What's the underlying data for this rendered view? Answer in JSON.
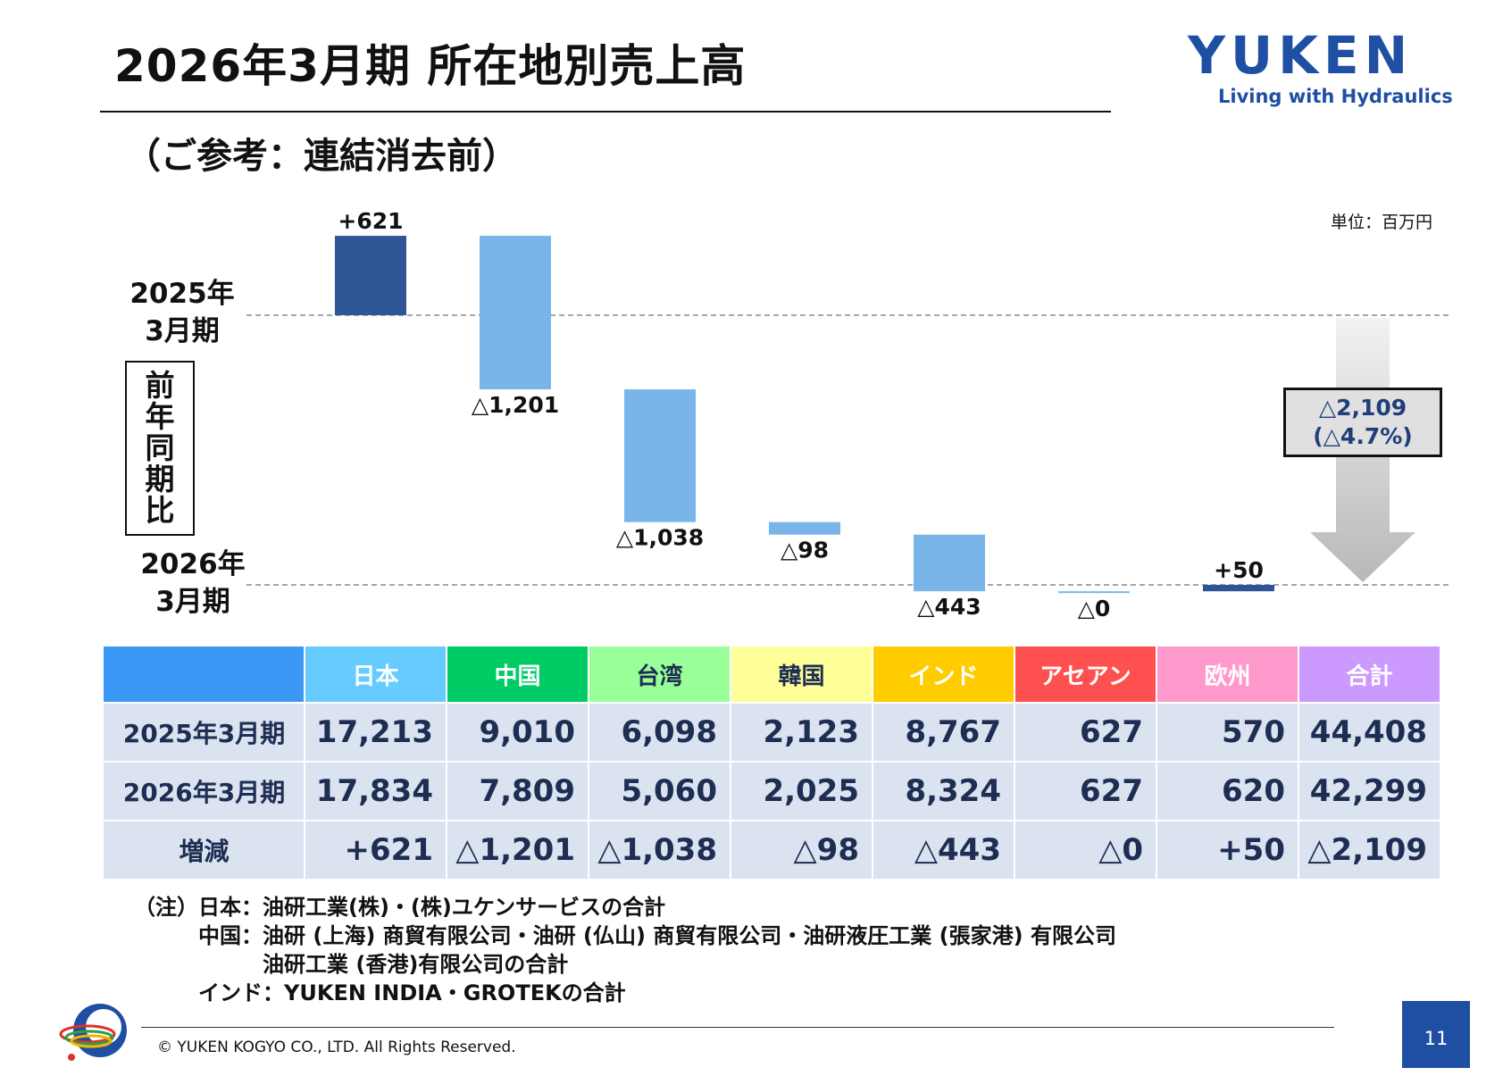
{
  "header": {
    "title": "2026年3月期 所在地別売上高",
    "subtitle": "（ご参考：連結消去前）",
    "unit": "単位：百万円"
  },
  "logo": {
    "wordmark": "YUKEN",
    "tagline": "Living with Hydraulics",
    "brand_color": "#1f4fa3"
  },
  "period_labels": {
    "start_line1": "2025年",
    "start_line2": "3月期",
    "end_line1": "2026年",
    "end_line2": "3月期",
    "yoy_chars": [
      "前",
      "年",
      "同",
      "期",
      "比"
    ]
  },
  "total_callout": {
    "line1": "△2,109",
    "line2": "(△4.7%)"
  },
  "chart_data": {
    "type": "waterfall",
    "start_total": 44408,
    "end_total": 42299,
    "steps": [
      {
        "value": 621,
        "label": "+621",
        "color": "#2f5597"
      },
      {
        "value": -1201,
        "label": "△1,201",
        "color": "#7ab5ea"
      },
      {
        "value": -1038,
        "label": "△1,038",
        "color": "#7ab5ea"
      },
      {
        "value": -98,
        "label": "△98",
        "color": "#7ab5ea"
      },
      {
        "value": -443,
        "label": "△443",
        "color": "#7ab5ea"
      },
      {
        "value": 0,
        "label": "△0",
        "color": "#7ab5ea"
      },
      {
        "value": 50,
        "label": "+50",
        "color": "#2f5597"
      }
    ]
  },
  "table": {
    "header_colors": [
      "#3b99f5",
      "#66ccff",
      "#00cc66",
      "#99ff99",
      "#ffff99",
      "#ffcc00",
      "#ff5050",
      "#ff99cc",
      "#cc99ff"
    ],
    "header_text_colors": [
      "#ffffff",
      "#ffffff",
      "#ffffff",
      "#1e2d52",
      "#1e2d52",
      "#ffffff",
      "#ffffff",
      "#ffffff",
      "#ffffff"
    ],
    "columns": [
      "",
      "日本",
      "中国",
      "台湾",
      "韓国",
      "インド",
      "アセアン",
      "欧州",
      "合計"
    ],
    "rows": [
      {
        "label": "2025年3月期",
        "values": [
          "17,213",
          "9,010",
          "6,098",
          "2,123",
          "8,767",
          "627",
          "570",
          "44,408"
        ]
      },
      {
        "label": "2026年3月期",
        "values": [
          "17,834",
          "7,809",
          "5,060",
          "2,025",
          "8,324",
          "627",
          "620",
          "42,299"
        ]
      },
      {
        "label": "増減",
        "values": [
          "+621",
          "△1,201",
          "△1,038",
          "△98",
          "△443",
          "△0",
          "+50",
          "△2,109"
        ]
      }
    ]
  },
  "notes": [
    "（注）日本：油研工業(株)・(株)ユケンサービスの合計",
    "　　　中国：油研 (上海) 商貿有限公司・油研 (仏山) 商貿有限公司・油研液圧工業 (張家港) 有限公司",
    "　　　　　　油研工業 (香港)有限公司の合計",
    "　　　インド：YUKEN INDIA・GROTEKの合計"
  ],
  "footer": {
    "copyright": "© YUKEN KOGYO CO., LTD. All Rights Reserved.",
    "page_number": "11"
  }
}
